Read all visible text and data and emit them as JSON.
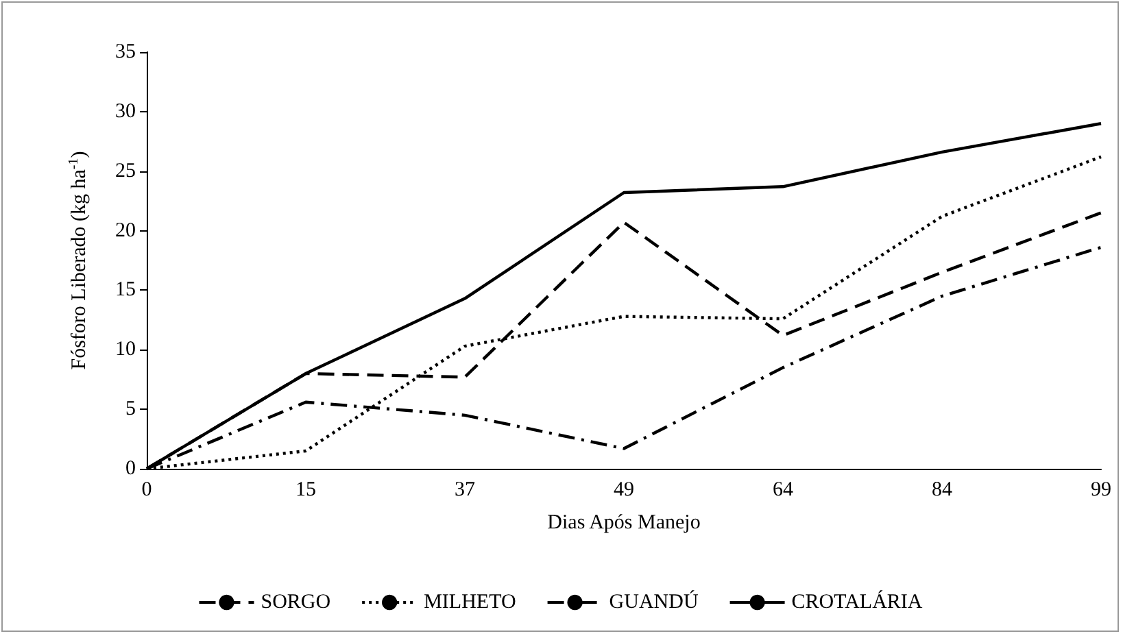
{
  "chart_data": {
    "type": "line",
    "xlabel": "Dias Após Manejo",
    "ylabel": "Fósforo Liberado (kg ha$^{-1}$)",
    "categories": [
      "0",
      "15",
      "37",
      "49",
      "64",
      "84",
      "99"
    ],
    "series": [
      {
        "name": "SORGO",
        "color": "#000000",
        "line_style": "dashed",
        "values": [
          0,
          8,
          7.7,
          20.7,
          11.2,
          16.5,
          21.5
        ]
      },
      {
        "name": "MILHETO",
        "color": "#000000",
        "line_style": "dotted",
        "values": [
          0,
          1.5,
          10.3,
          12.8,
          12.6,
          21.2,
          26.2
        ]
      },
      {
        "name": "GUANDÚ",
        "color": "#000000",
        "line_style": "dashdot",
        "values": [
          0,
          5.6,
          4.5,
          1.7,
          8.5,
          14.5,
          18.6
        ]
      },
      {
        "name": "CROTALÁRIA",
        "color": "#000000",
        "line_style": "solid",
        "values": [
          0,
          8,
          14.3,
          23.2,
          23.7,
          26.6,
          29
        ]
      }
    ],
    "ylim": [
      0,
      35
    ],
    "yticks": [
      0,
      5,
      10,
      15,
      20,
      25,
      30,
      35
    ],
    "grid": false,
    "legend": "bottom",
    "marker": "none"
  }
}
